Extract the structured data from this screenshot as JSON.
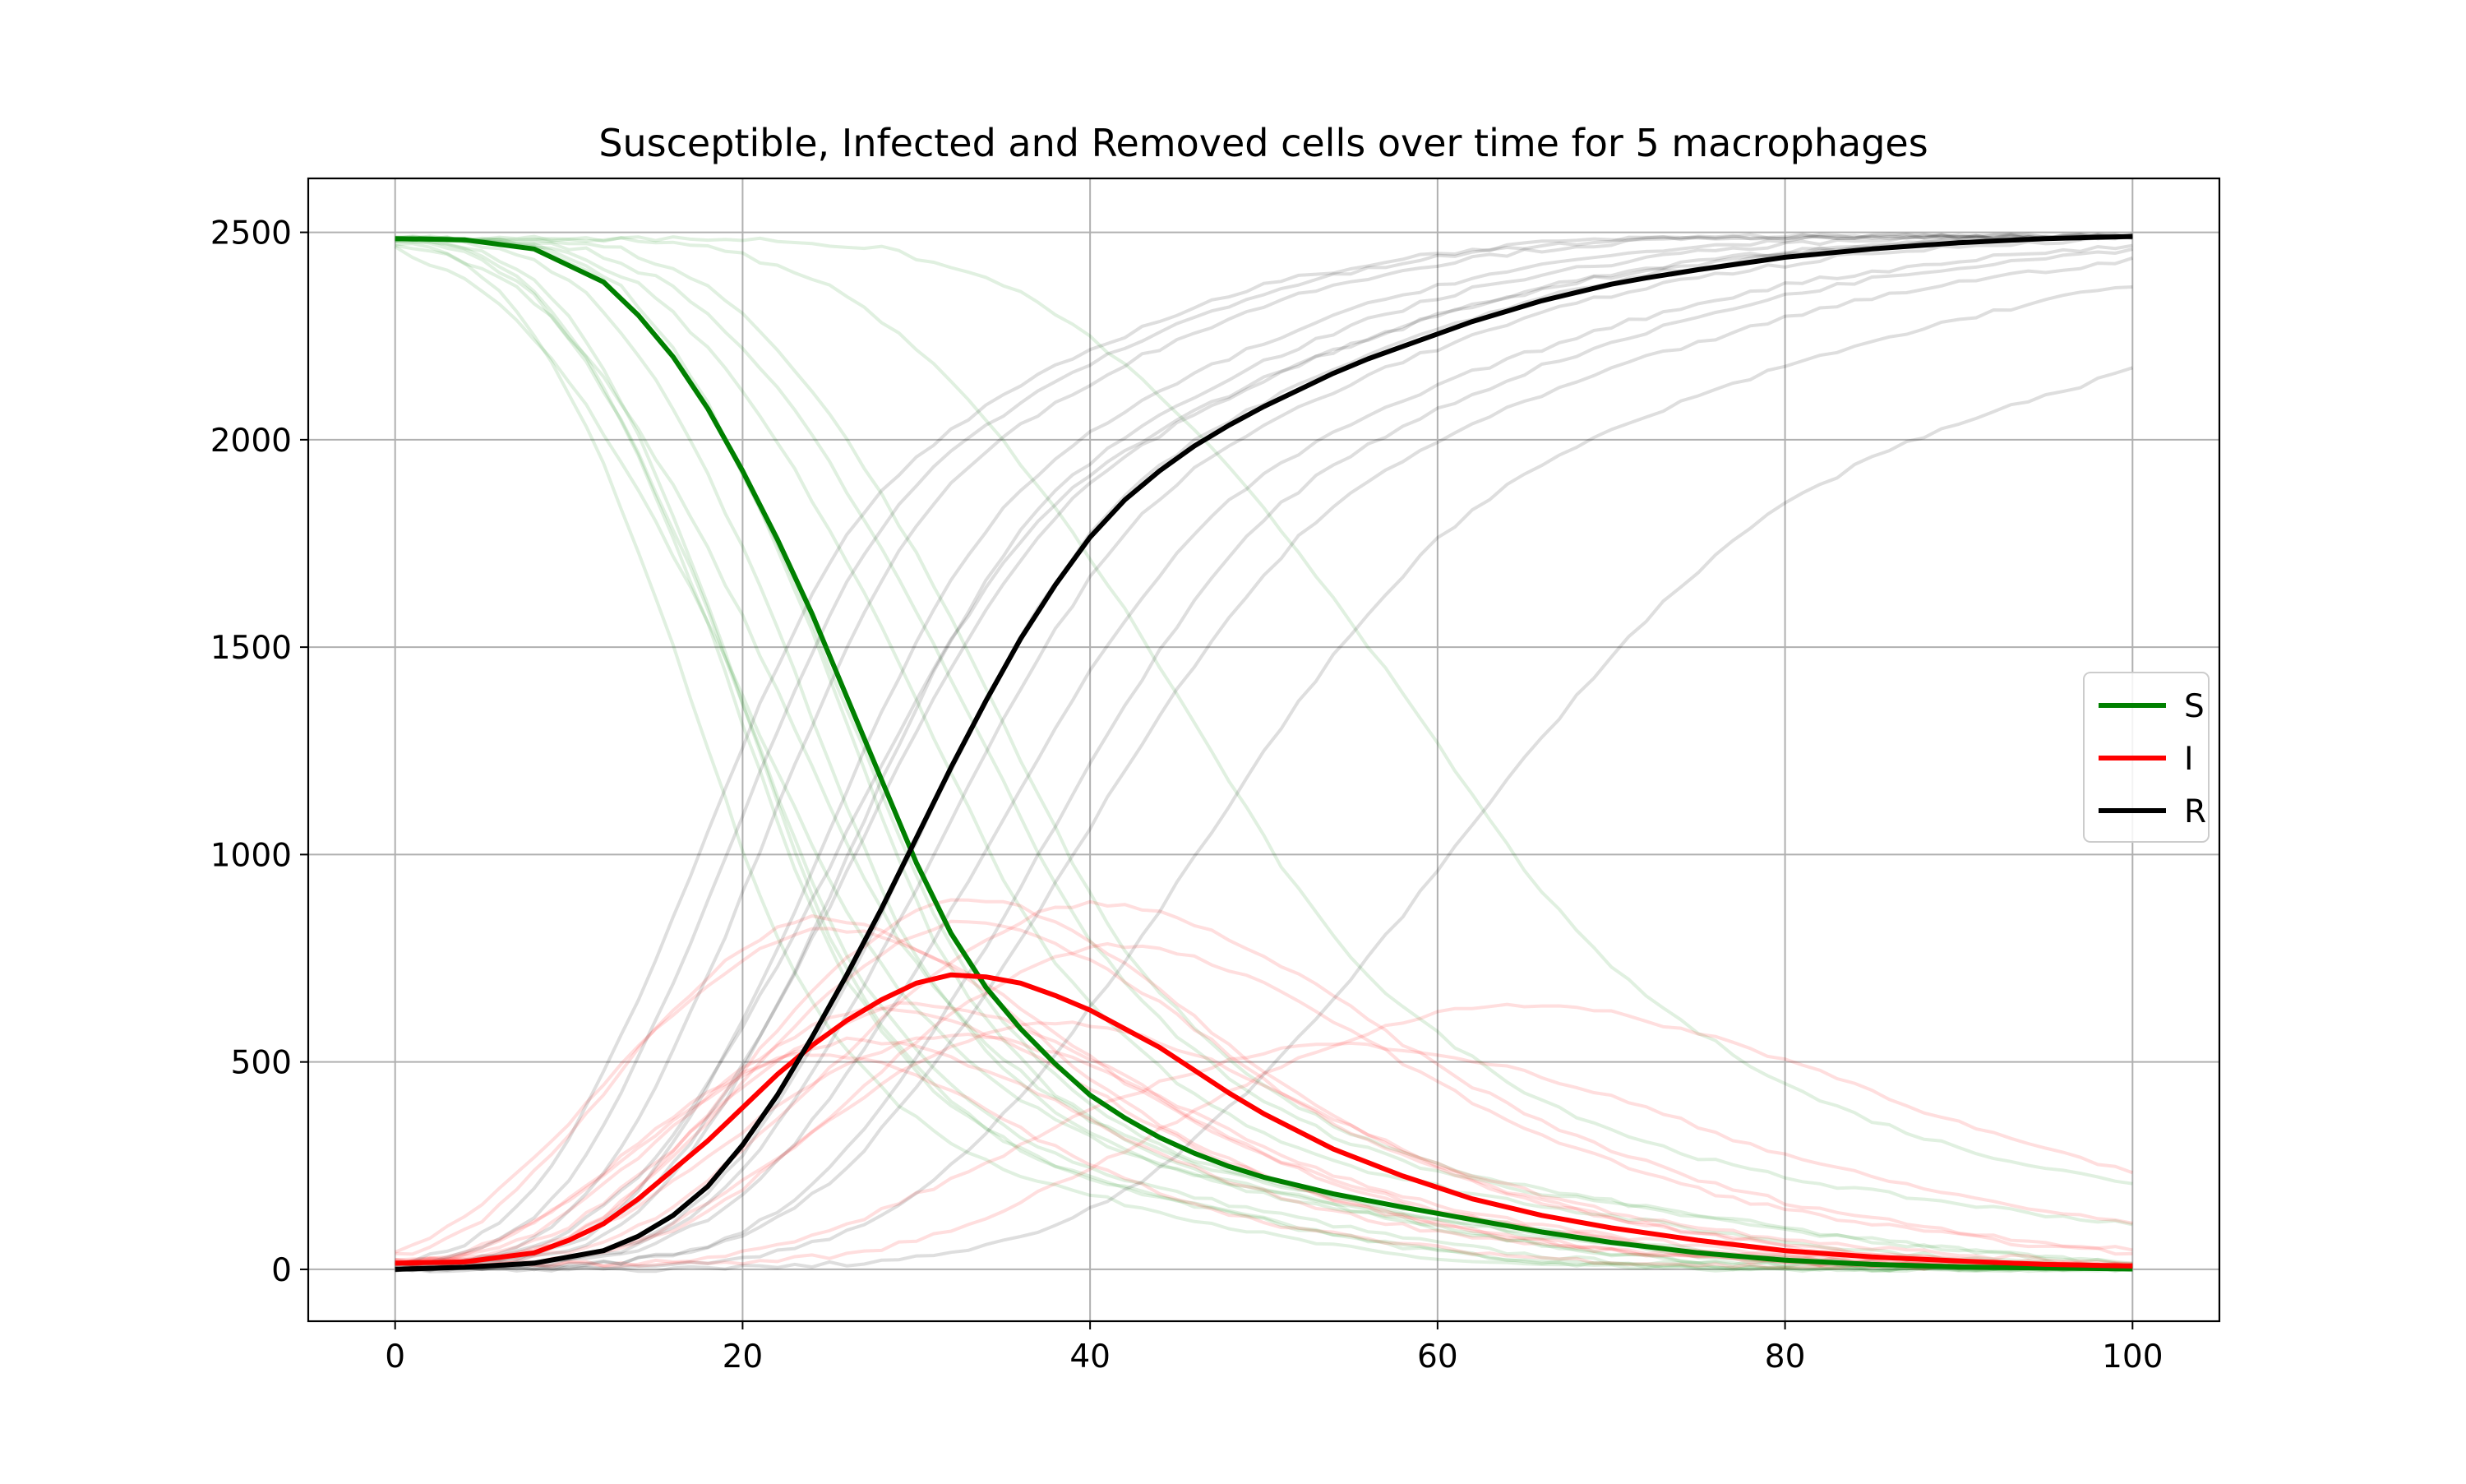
{
  "chart_data": {
    "type": "line",
    "title": "Susceptible, Infected and Removed cells over time for 5 macrophages",
    "xlabel": "",
    "ylabel": "",
    "xlim": [
      -5,
      105
    ],
    "ylim": [
      -125,
      2630
    ],
    "x_ticks": [
      0,
      20,
      40,
      60,
      80,
      100
    ],
    "y_ticks": [
      0,
      500,
      1000,
      1500,
      2000,
      2500
    ],
    "grid": true,
    "legend_position": "center-right",
    "colors": {
      "S": "#008000",
      "I": "#ff0000",
      "R": "#000000"
    },
    "series": [
      {
        "name": "S",
        "x": [
          0,
          4,
          8,
          12,
          14,
          16,
          18,
          20,
          22,
          24,
          26,
          28,
          30,
          32,
          34,
          36,
          38,
          40,
          42,
          44,
          46,
          48,
          50,
          54,
          58,
          62,
          66,
          70,
          75,
          80,
          85,
          90,
          95,
          100
        ],
        "values": [
          2485,
          2482,
          2460,
          2380,
          2300,
          2200,
          2075,
          1925,
          1760,
          1580,
          1380,
          1180,
          980,
          810,
          680,
          580,
          495,
          420,
          365,
          318,
          280,
          248,
          222,
          182,
          150,
          120,
          90,
          65,
          40,
          22,
          12,
          6,
          3,
          1
        ]
      },
      {
        "name": "I",
        "x": [
          0,
          4,
          8,
          10,
          12,
          14,
          16,
          18,
          20,
          22,
          24,
          26,
          28,
          30,
          32,
          34,
          36,
          38,
          40,
          42,
          44,
          46,
          48,
          50,
          54,
          58,
          62,
          66,
          70,
          75,
          80,
          85,
          90,
          95,
          100
        ],
        "values": [
          15,
          18,
          40,
          70,
          110,
          170,
          240,
          310,
          390,
          470,
          540,
          600,
          650,
          690,
          710,
          705,
          690,
          660,
          625,
          580,
          535,
          480,
          425,
          375,
          290,
          225,
          170,
          130,
          100,
          70,
          45,
          30,
          20,
          12,
          8
        ]
      },
      {
        "name": "R",
        "x": [
          0,
          4,
          8,
          12,
          14,
          16,
          18,
          20,
          22,
          24,
          26,
          28,
          30,
          32,
          34,
          36,
          38,
          40,
          42,
          44,
          46,
          48,
          50,
          52,
          54,
          56,
          58,
          60,
          62,
          64,
          66,
          68,
          70,
          72,
          75,
          80,
          85,
          90,
          95,
          100
        ],
        "values": [
          0,
          5,
          15,
          45,
          80,
          130,
          200,
          300,
          420,
          560,
          710,
          870,
          1040,
          1210,
          1370,
          1520,
          1650,
          1765,
          1855,
          1925,
          1985,
          2035,
          2080,
          2120,
          2160,
          2195,
          2225,
          2255,
          2285,
          2310,
          2335,
          2355,
          2375,
          2390,
          2410,
          2440,
          2460,
          2475,
          2485,
          2490
        ]
      }
    ]
  }
}
